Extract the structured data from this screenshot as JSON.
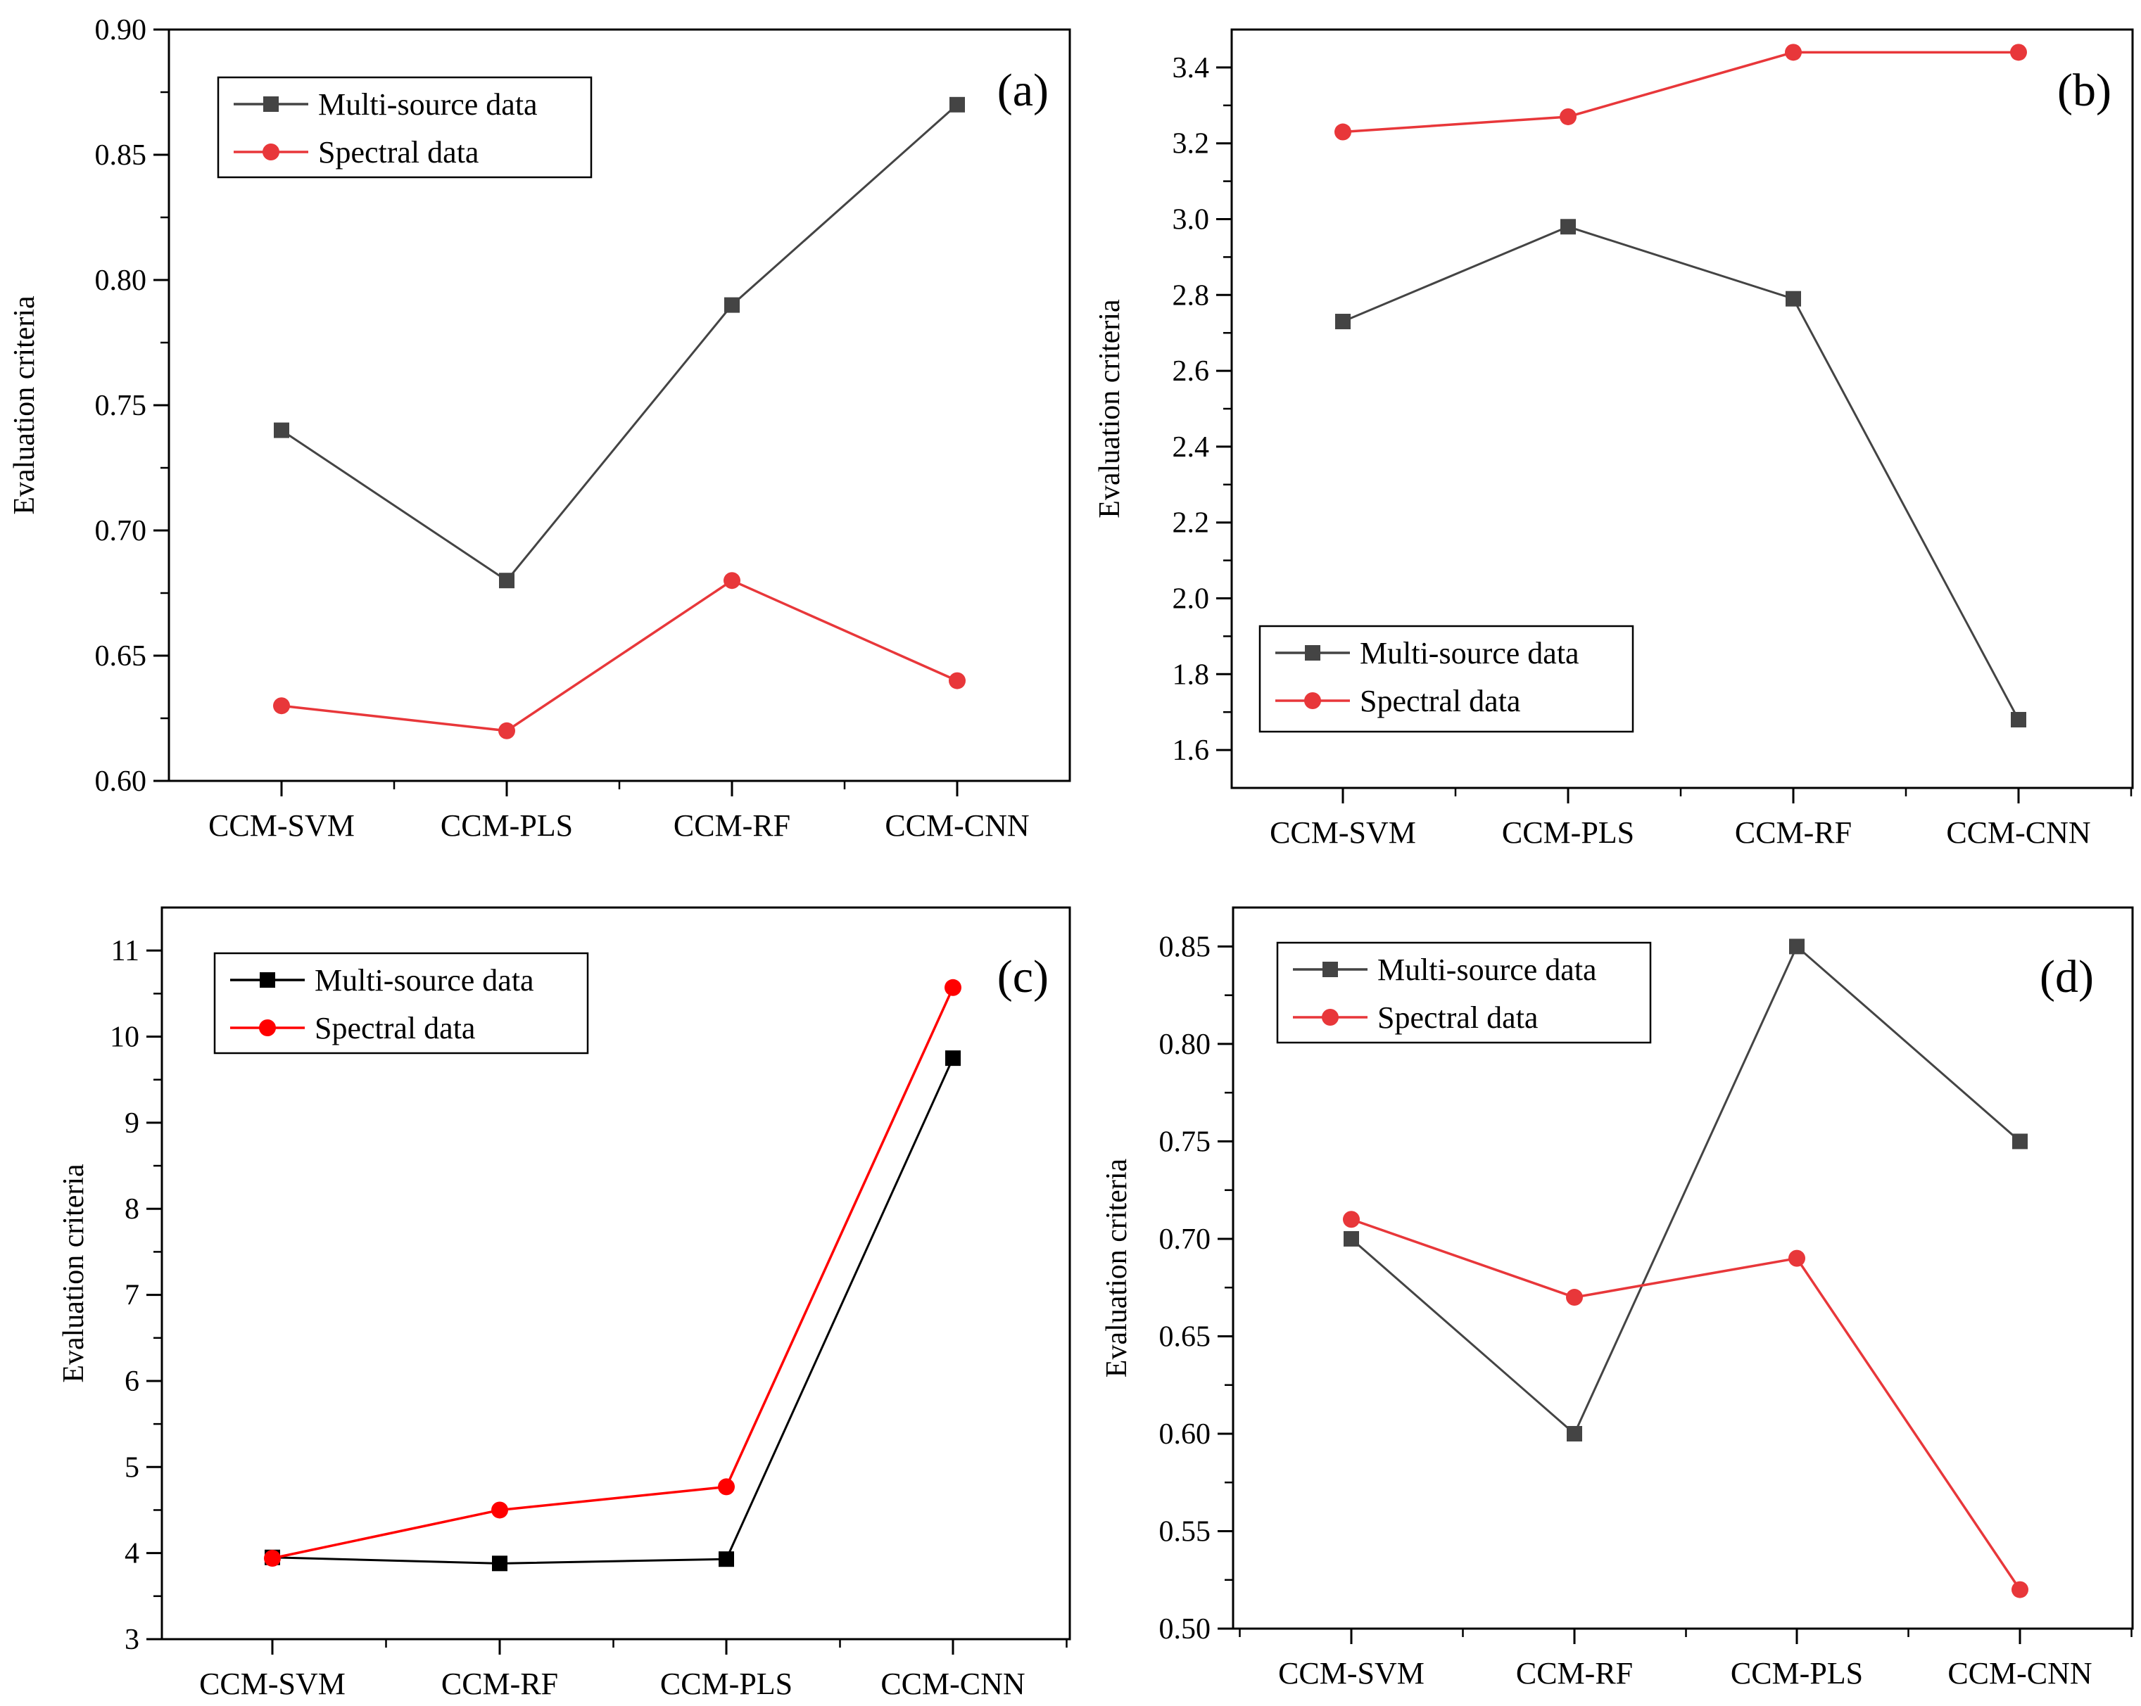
{
  "chart_data": [
    {
      "type": "line",
      "panel_label": "(a)",
      "ylabel": "Evaluation criteria",
      "xlabel": "",
      "categories": [
        "CCM-SVM",
        "CCM-PLS",
        "CCM-RF",
        "CCM-CNN"
      ],
      "ylim": [
        0.6,
        0.9
      ],
      "yticks": [
        "0.60",
        "0.65",
        "0.70",
        "0.75",
        "0.80",
        "0.85",
        "0.90"
      ],
      "grid": false,
      "legend_position": "top-left",
      "series": [
        {
          "name": "Multi-source data",
          "marker": "square",
          "color": "#444444",
          "values": [
            0.74,
            0.68,
            0.79,
            0.87
          ]
        },
        {
          "name": "Spectral data",
          "marker": "circle",
          "color": "#e8373a",
          "values": [
            0.63,
            0.62,
            0.68,
            0.64
          ]
        }
      ]
    },
    {
      "type": "line",
      "panel_label": "(b)",
      "ylabel": "Evaluation criteria",
      "xlabel": "",
      "categories": [
        "CCM-SVM",
        "CCM-PLS",
        "CCM-RF",
        "CCM-CNN"
      ],
      "ylim": [
        1.5,
        3.5
      ],
      "yticks": [
        "1.6",
        "1.8",
        "2.0",
        "2.2",
        "2.4",
        "2.6",
        "2.8",
        "3.0",
        "3.2",
        "3.4"
      ],
      "grid": false,
      "legend_position": "bottom-left",
      "series": [
        {
          "name": "Multi-source data",
          "marker": "square",
          "color": "#444444",
          "values": [
            2.73,
            2.98,
            2.79,
            1.68
          ]
        },
        {
          "name": "Spectral data",
          "marker": "circle",
          "color": "#e8373a",
          "values": [
            3.23,
            3.27,
            3.44,
            3.44
          ]
        }
      ]
    },
    {
      "type": "line",
      "panel_label": "(c)",
      "ylabel": "Evaluation criteria",
      "xlabel": "",
      "categories": [
        "CCM-SVM",
        "CCM-RF",
        "CCM-PLS",
        "CCM-CNN"
      ],
      "ylim": [
        3,
        11.5
      ],
      "yticks": [
        "3",
        "4",
        "5",
        "6",
        "7",
        "8",
        "9",
        "10",
        "11"
      ],
      "grid": false,
      "legend_position": "top-left",
      "series": [
        {
          "name": "Multi-source data",
          "marker": "square",
          "color": "#000000",
          "values": [
            3.95,
            3.88,
            3.93,
            9.75
          ]
        },
        {
          "name": "Spectral data",
          "marker": "circle",
          "color": "#ff0000",
          "values": [
            3.94,
            4.5,
            4.77,
            10.57
          ]
        }
      ]
    },
    {
      "type": "line",
      "panel_label": "(d)",
      "ylabel": "Evaluation criteria",
      "xlabel": "",
      "categories": [
        "CCM-SVM",
        "CCM-RF",
        "CCM-PLS",
        "CCM-CNN"
      ],
      "ylim": [
        0.5,
        0.87
      ],
      "yticks": [
        "0.50",
        "0.55",
        "0.60",
        "0.65",
        "0.70",
        "0.75",
        "0.80",
        "0.85"
      ],
      "grid": false,
      "legend_position": "top-left",
      "series": [
        {
          "name": "Multi-source data",
          "marker": "square",
          "color": "#444444",
          "values": [
            0.7,
            0.6,
            0.85,
            0.75
          ]
        },
        {
          "name": "Spectral data",
          "marker": "circle",
          "color": "#e8373a",
          "values": [
            0.71,
            0.67,
            0.69,
            0.52
          ]
        }
      ]
    }
  ]
}
